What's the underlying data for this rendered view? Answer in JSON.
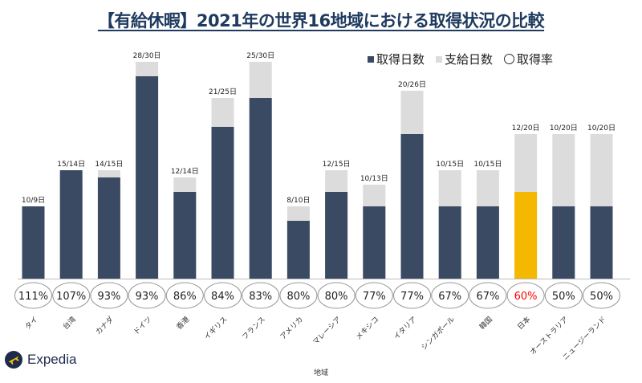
{
  "title": "【有給休暇】2021年の世界16地域における取得状況の比較",
  "brand": {
    "name": "Expedia"
  },
  "legend": {
    "taken": "取得日数",
    "granted": "支給日数",
    "rate": "取得率"
  },
  "colors": {
    "taken": "#3b4a63",
    "granted": "#dcdcdc",
    "highlight": "#f5b800",
    "highlight_text": "#ff0000"
  },
  "chart_data": {
    "type": "bar",
    "xlabel": "地域",
    "ylabel": "",
    "ylim": [
      0,
      30
    ],
    "highlight_category": "日本",
    "categories": [
      "タイ",
      "台湾",
      "カナダ",
      "ドイツ",
      "香港",
      "イギリス",
      "フランス",
      "アメリカ",
      "マレーシア",
      "メキシコ",
      "イタリア",
      "シンガポール",
      "韓国",
      "日本",
      "オーストラリア",
      "ニュージーランド"
    ],
    "series": [
      {
        "name": "取得日数",
        "values": [
          10,
          15,
          14,
          28,
          12,
          21,
          25,
          8,
          12,
          10,
          20,
          10,
          10,
          12,
          10,
          10
        ]
      },
      {
        "name": "支給日数",
        "values": [
          9,
          14,
          15,
          30,
          14,
          25,
          30,
          10,
          15,
          13,
          26,
          15,
          15,
          20,
          20,
          20
        ]
      }
    ],
    "bar_labels": [
      "10/9日",
      "15/14日",
      "14/15日",
      "28/30日",
      "12/14日",
      "21/25日",
      "25/30日",
      "8/10日",
      "12/15日",
      "10/13日",
      "20/26日",
      "10/15日",
      "10/15日",
      "12/20日",
      "10/20日",
      "10/20日"
    ],
    "rates": [
      "111%",
      "107%",
      "93%",
      "93%",
      "86%",
      "84%",
      "83%",
      "80%",
      "80%",
      "77%",
      "77%",
      "67%",
      "67%",
      "60%",
      "50%",
      "50%"
    ]
  }
}
